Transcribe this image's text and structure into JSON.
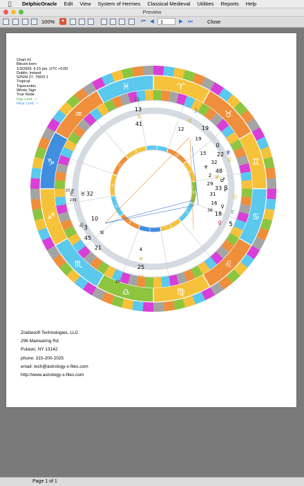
{
  "menubar": {
    "apple": "",
    "app_name": "DelphicOracle",
    "items": [
      "Edit",
      "View",
      "System of Hermes",
      "Classical Medieval",
      "Utilities",
      "Reports",
      "Help"
    ]
  },
  "window": {
    "title": "Preview"
  },
  "toolbar": {
    "zoom": "100%",
    "first_page": "⏮",
    "prev_page": "◀",
    "page_number": "1",
    "next_page": "▶",
    "last_page": "⏭",
    "close_label": "Close"
  },
  "chart_info": [
    "Chart #1",
    "Bitcoin born",
    "1/3/2009, 6:15 pm, UTC +0:00",
    "Dublin, Ireland",
    "52N34 27, 7W33 1",
    "Tropical",
    "Topocentric",
    "Whole Sign",
    "True Node",
    "Day Lord: ♃",
    "Hour Lord: ♃"
  ],
  "colors": {
    "orange": "#ef8f3b",
    "yellow": "#f6c23a",
    "green": "#8dc53f",
    "light_blue": "#5bc8ee",
    "blue": "#3f8ee0",
    "magenta": "#d83fd8",
    "grey": "#a4a4a4",
    "day_lord": "#4fa84a",
    "hour_lord": "#3d8fe0"
  },
  "wheel": {
    "signs": [
      "♈",
      "♉",
      "♊",
      "♋",
      "♌",
      "♍",
      "♎",
      "♏",
      "♐",
      "♑",
      "♒",
      "♓"
    ],
    "house_numbers": [
      "10",
      "11",
      "12",
      "1",
      "2",
      "3",
      "4",
      "5",
      "6",
      "7",
      "8",
      "9"
    ],
    "labels": [
      {
        "text": "☊",
        "color": "#1f7a3a"
      },
      {
        "text": "13",
        "color": "#000"
      },
      {
        "text": "♋",
        "color": "#d6a81e"
      },
      {
        "text": "41",
        "color": "#000"
      },
      {
        "text": "☽",
        "color": "#2a55b8"
      },
      {
        "text": "12",
        "color": "#000"
      },
      {
        "text": "♅",
        "color": "#d6a81e"
      },
      {
        "text": "19",
        "color": "#000"
      },
      {
        "text": "19",
        "color": "#000"
      },
      {
        "text": "15",
        "color": "#000"
      },
      {
        "text": "0",
        "color": "#000"
      },
      {
        "text": "♆",
        "color": "#3a3aa8"
      },
      {
        "text": "22",
        "color": "#000"
      },
      {
        "text": "♌",
        "color": "#d6a81e"
      },
      {
        "text": "32",
        "color": "#000"
      },
      {
        "text": "♆",
        "color": "#000"
      },
      {
        "text": "48",
        "color": "#000"
      },
      {
        "text": "2",
        "color": "#000"
      },
      {
        "text": "♅",
        "color": "#d6a81e"
      },
      {
        "text": "29",
        "color": "#000"
      },
      {
        "text": "♂",
        "color": "#000"
      },
      {
        "text": "33",
        "color": "#000"
      },
      {
        "text": "β",
        "color": "#000"
      },
      {
        "text": "31",
        "color": "#000"
      },
      {
        "text": "☉",
        "color": "#e6a11e"
      },
      {
        "text": "16",
        "color": "#000"
      },
      {
        "text": "♀",
        "color": "#000"
      },
      {
        "text": "36",
        "color": "#000"
      },
      {
        "text": "18",
        "color": "#000"
      },
      {
        "text": "♀",
        "color": "#b8242a"
      },
      {
        "text": "♇",
        "color": "#2a8a3a"
      },
      {
        "text": "5",
        "color": "#000"
      },
      {
        "text": "♇",
        "color": "#000"
      },
      {
        "text": "32",
        "color": "#000"
      },
      {
        "text": "♅",
        "color": "#000"
      },
      {
        "text": "9",
        "color": "#000"
      },
      {
        "text": "♉",
        "color": "#000"
      },
      {
        "text": "10",
        "color": "#000"
      },
      {
        "text": "3",
        "color": "#000"
      },
      {
        "text": "♌",
        "color": "#000"
      },
      {
        "text": "45",
        "color": "#000"
      },
      {
        "text": "♃",
        "color": "#000"
      },
      {
        "text": "21",
        "color": "#000"
      },
      {
        "text": "4",
        "color": "#000"
      },
      {
        "text": "♅",
        "color": "#d6a81e"
      },
      {
        "text": "25",
        "color": "#000"
      },
      {
        "text": "☋",
        "color": "#e6a11e"
      },
      {
        "text": "23",
        "color": "#000"
      },
      {
        "text": "10",
        "color": "#000"
      },
      {
        "text": "23",
        "color": "#000"
      }
    ]
  },
  "company": [
    "Zoidiasoft Technologies, LLC",
    "296 Manwaring Rd.",
    "Pulaski, NY 13142",
    "phone: 315-200-2025",
    "email: tech@astrology-x-files.com",
    "http://www.astrology-x-files.com"
  ],
  "status": {
    "page": "Page 1 of 1"
  }
}
